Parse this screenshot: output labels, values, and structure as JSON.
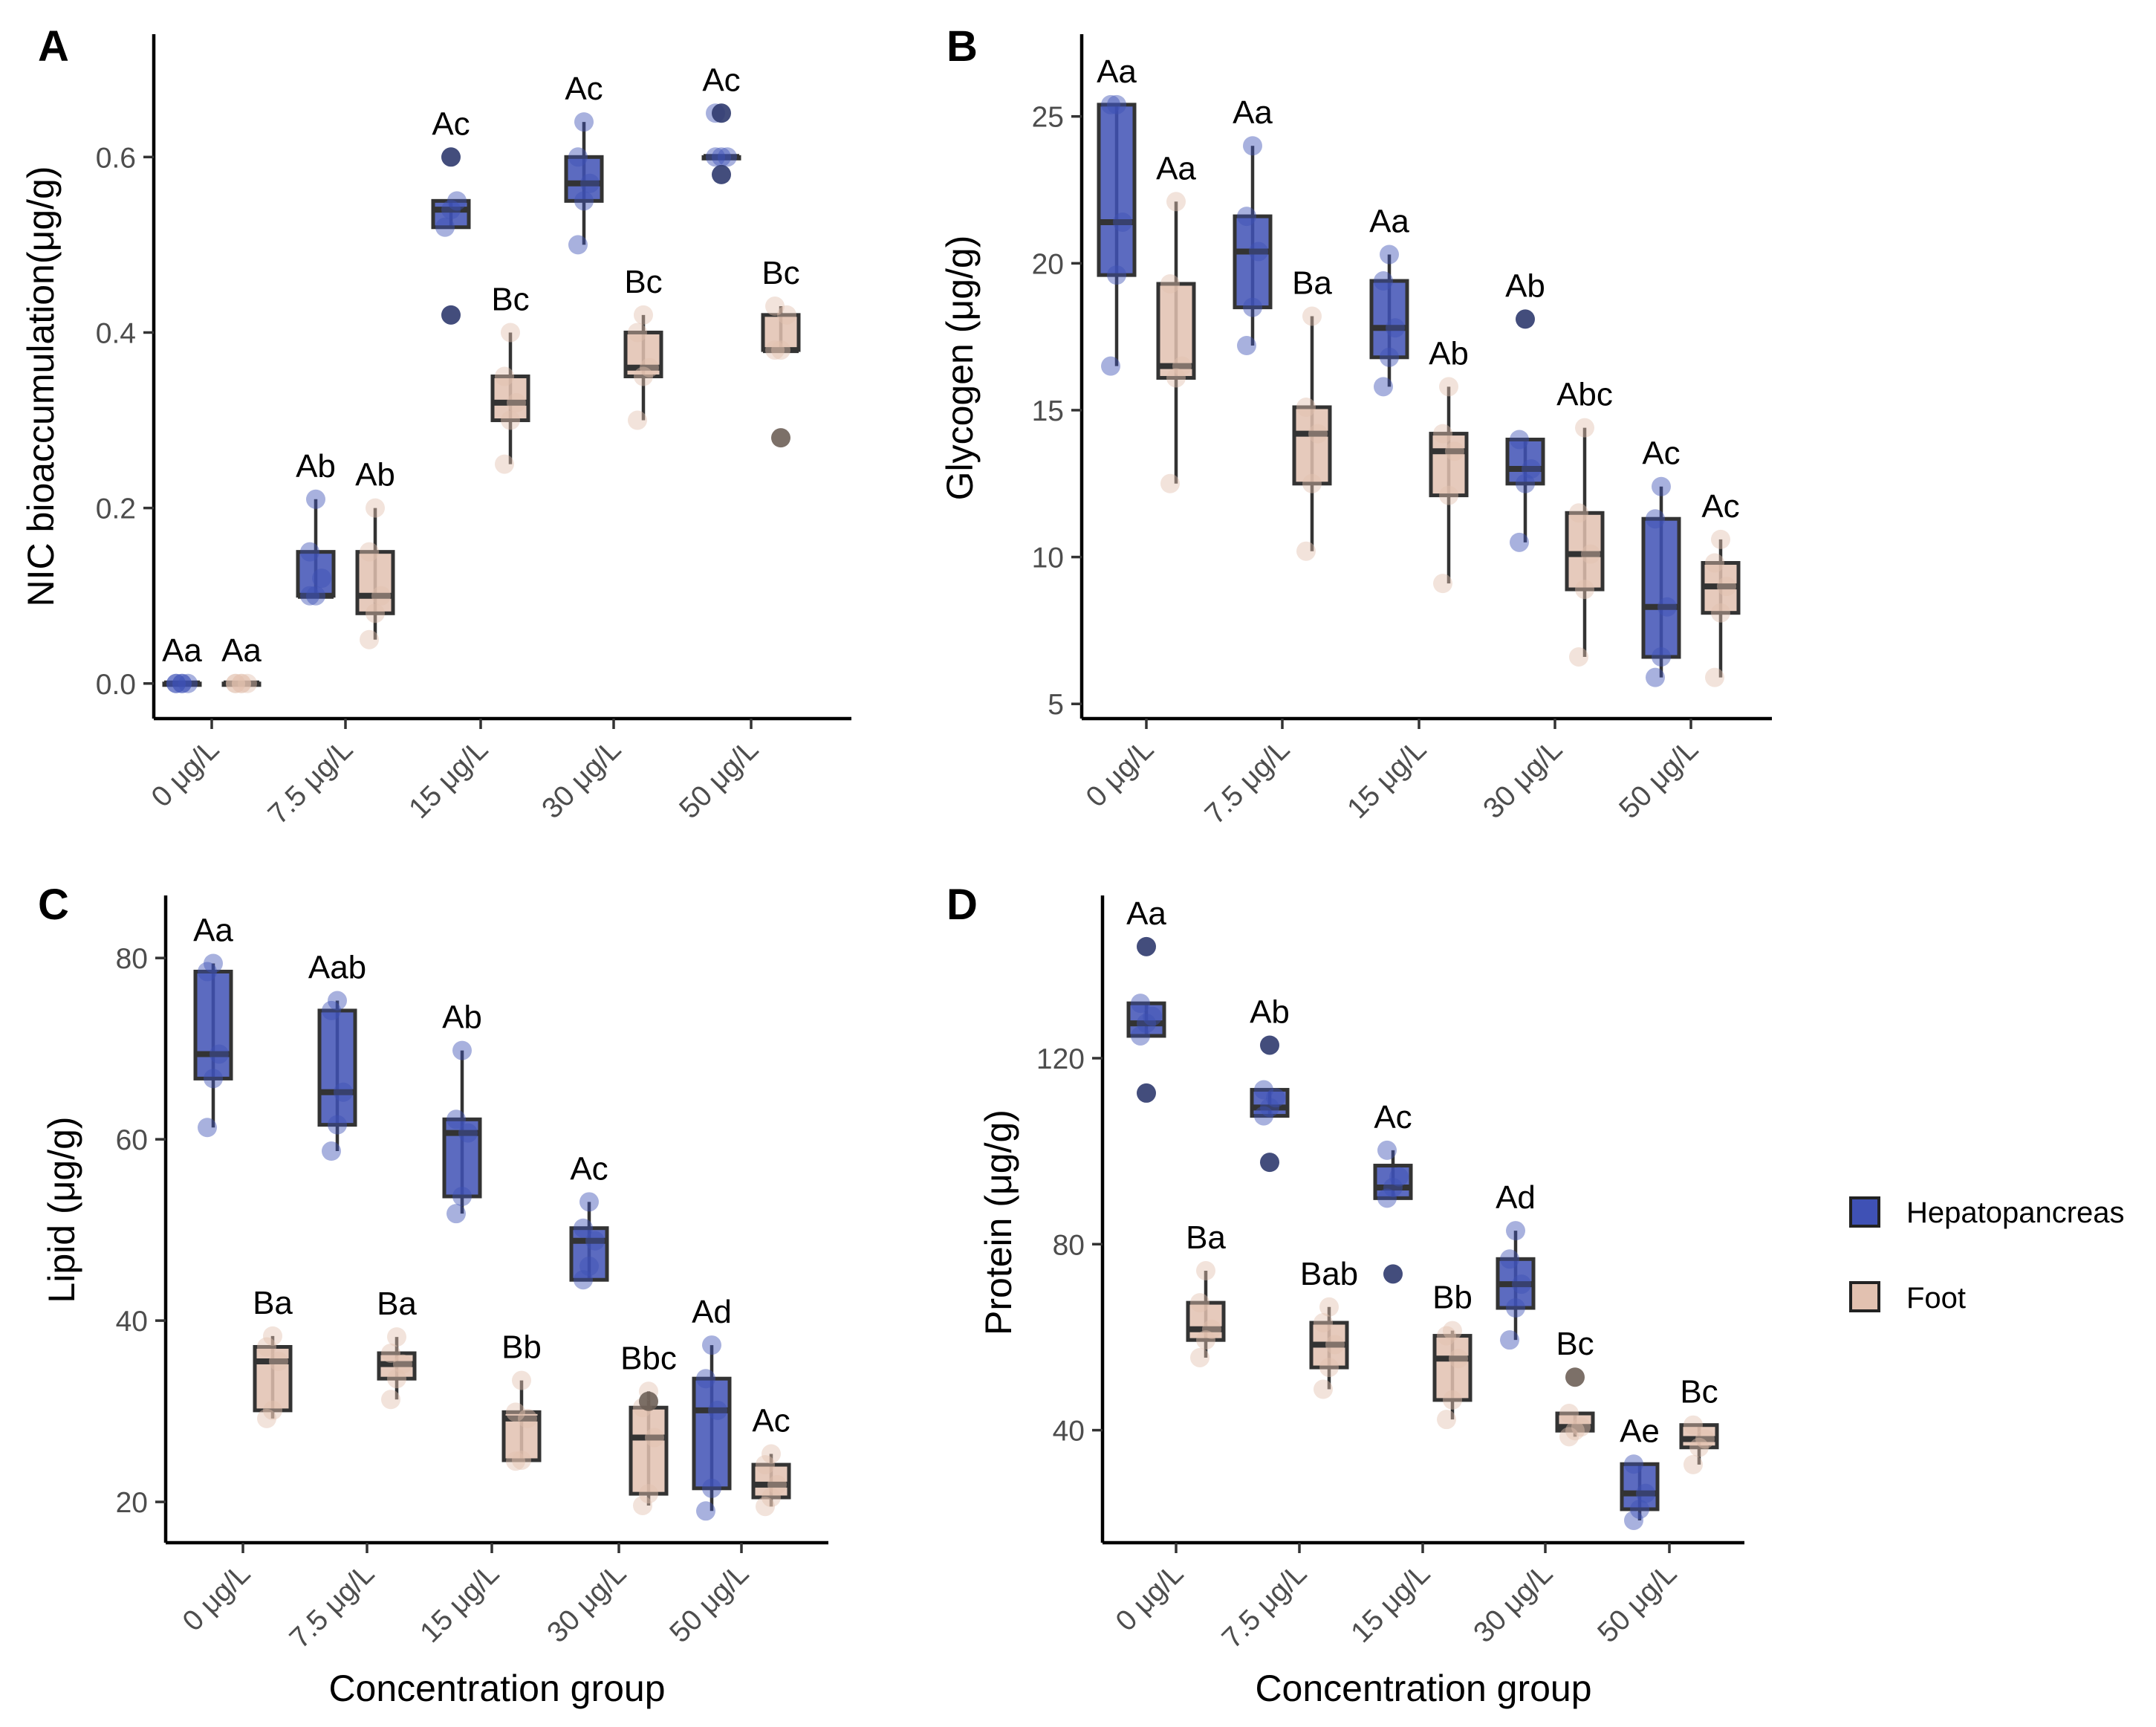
{
  "colors": {
    "hepatopancreas": "#3f51b5",
    "foot": "#e2c1b0",
    "outlier_hepatopancreas": "#2f3a6e",
    "outlier_foot": "#6e6058"
  },
  "legend": {
    "items": [
      {
        "label": "Hepatopancreas",
        "color": "#3f51b5"
      },
      {
        "label": "Foot",
        "color": "#e2c1b0"
      }
    ]
  },
  "chart_data": [
    {
      "panel": "A",
      "type": "box",
      "xlabel": "",
      "ylabel": "NIC bioaccumulation(μg/g)",
      "ylim": [
        -0.04,
        0.74
      ],
      "yticks": [
        0.0,
        0.2,
        0.4,
        0.6
      ],
      "ytick_labels": [
        "0.0",
        "0.2",
        "0.4",
        "0.6"
      ],
      "categories": [
        "0 μg/L",
        "7.5 μg/L",
        "15 μg/L",
        "30 μg/L",
        "50 μg/L"
      ],
      "series": [
        {
          "name": "Hepatopancreas",
          "boxes": [
            {
              "q1": 0.0,
              "median": 0.0,
              "q3": 0.0,
              "whislo": 0.0,
              "whishi": 0.0,
              "points": [
                0.0,
                0.0,
                0.0,
                0.0,
                0.0
              ],
              "outliers": [],
              "label": "Aa"
            },
            {
              "q1": 0.1,
              "median": 0.1,
              "q3": 0.15,
              "whislo": 0.1,
              "whishi": 0.21,
              "points": [
                0.1,
                0.1,
                0.12,
                0.15,
                0.21
              ],
              "outliers": [],
              "label": "Ab"
            },
            {
              "q1": 0.52,
              "median": 0.54,
              "q3": 0.55,
              "whislo": 0.52,
              "whishi": 0.55,
              "points": [
                0.52,
                0.54,
                0.55
              ],
              "outliers": [
                0.6,
                0.42
              ],
              "label": "Ac"
            },
            {
              "q1": 0.55,
              "median": 0.57,
              "q3": 0.6,
              "whislo": 0.5,
              "whishi": 0.64,
              "points": [
                0.5,
                0.55,
                0.57,
                0.6,
                0.64
              ],
              "outliers": [],
              "label": "Ac"
            },
            {
              "q1": 0.6,
              "median": 0.6,
              "q3": 0.6,
              "whislo": 0.6,
              "whishi": 0.6,
              "points": [
                0.6,
                0.6,
                0.6,
                0.65
              ],
              "outliers": [
                0.65,
                0.58
              ],
              "label": "Ac"
            }
          ]
        },
        {
          "name": "Foot",
          "boxes": [
            {
              "q1": 0.0,
              "median": 0.0,
              "q3": 0.0,
              "whislo": 0.0,
              "whishi": 0.0,
              "points": [
                0.0,
                0.0,
                0.0,
                0.0,
                0.0
              ],
              "outliers": [],
              "label": "Aa"
            },
            {
              "q1": 0.08,
              "median": 0.1,
              "q3": 0.15,
              "whislo": 0.05,
              "whishi": 0.2,
              "points": [
                0.05,
                0.08,
                0.1,
                0.15,
                0.2
              ],
              "outliers": [],
              "label": "Ab"
            },
            {
              "q1": 0.3,
              "median": 0.32,
              "q3": 0.35,
              "whislo": 0.25,
              "whishi": 0.4,
              "points": [
                0.25,
                0.3,
                0.32,
                0.35,
                0.4
              ],
              "outliers": [],
              "label": "Bc"
            },
            {
              "q1": 0.35,
              "median": 0.36,
              "q3": 0.4,
              "whislo": 0.3,
              "whishi": 0.42,
              "points": [
                0.3,
                0.35,
                0.36,
                0.4,
                0.42
              ],
              "outliers": [],
              "label": "Bc"
            },
            {
              "q1": 0.38,
              "median": 0.38,
              "q3": 0.42,
              "whislo": 0.38,
              "whishi": 0.43,
              "points": [
                0.38,
                0.38,
                0.42,
                0.43
              ],
              "outliers": [
                0.28
              ],
              "label": "Bc"
            }
          ]
        }
      ]
    },
    {
      "panel": "B",
      "type": "box",
      "xlabel": "",
      "ylabel": "Glycogen (μg/g)",
      "ylim": [
        4.5,
        27.8
      ],
      "yticks": [
        5,
        10,
        15,
        20,
        25
      ],
      "ytick_labels": [
        "5",
        "10",
        "15",
        "20",
        "25"
      ],
      "categories": [
        "0 μg/L",
        "7.5 μg/L",
        "15 μg/L",
        "30 μg/L",
        "50 μg/L"
      ],
      "series": [
        {
          "name": "Hepatopancreas",
          "boxes": [
            {
              "q1": 19.6,
              "median": 21.4,
              "q3": 25.4,
              "whislo": 16.5,
              "whishi": 25.4,
              "points": [
                16.5,
                19.6,
                21.4,
                25.4,
                25.4
              ],
              "outliers": [],
              "label": "Aa"
            },
            {
              "q1": 18.5,
              "median": 20.4,
              "q3": 21.6,
              "whislo": 17.2,
              "whishi": 24.0,
              "points": [
                17.2,
                18.5,
                20.4,
                21.6,
                24.0
              ],
              "outliers": [],
              "label": "Aa"
            },
            {
              "q1": 16.8,
              "median": 17.8,
              "q3": 19.4,
              "whislo": 15.8,
              "whishi": 20.3,
              "points": [
                15.8,
                16.8,
                17.8,
                19.4,
                20.3
              ],
              "outliers": [],
              "label": "Aa"
            },
            {
              "q1": 12.5,
              "median": 13.0,
              "q3": 14.0,
              "whislo": 10.5,
              "whishi": 14.0,
              "points": [
                10.5,
                12.5,
                13.0,
                14.0
              ],
              "outliers": [
                18.1
              ],
              "label": "Ab"
            },
            {
              "q1": 6.6,
              "median": 8.3,
              "q3": 11.3,
              "whislo": 5.9,
              "whishi": 12.4,
              "points": [
                5.9,
                6.6,
                8.3,
                11.3,
                12.4
              ],
              "outliers": [],
              "label": "Ac"
            }
          ]
        },
        {
          "name": "Foot",
          "boxes": [
            {
              "q1": 16.1,
              "median": 16.5,
              "q3": 19.3,
              "whislo": 12.5,
              "whishi": 22.1,
              "points": [
                12.5,
                16.1,
                16.5,
                19.3,
                22.1
              ],
              "outliers": [],
              "label": "Aa"
            },
            {
              "q1": 12.5,
              "median": 14.2,
              "q3": 15.1,
              "whislo": 10.2,
              "whishi": 18.2,
              "points": [
                10.2,
                12.5,
                14.2,
                15.1,
                18.2
              ],
              "outliers": [],
              "label": "Ba"
            },
            {
              "q1": 12.1,
              "median": 13.6,
              "q3": 14.2,
              "whislo": 9.1,
              "whishi": 15.8,
              "points": [
                9.1,
                12.1,
                13.6,
                14.2,
                15.8
              ],
              "outliers": [],
              "label": "Ab"
            },
            {
              "q1": 8.9,
              "median": 10.1,
              "q3": 11.5,
              "whislo": 6.6,
              "whishi": 14.4,
              "points": [
                6.6,
                8.9,
                10.1,
                11.5,
                14.4
              ],
              "outliers": [],
              "label": "Abc"
            },
            {
              "q1": 8.1,
              "median": 9.0,
              "q3": 9.8,
              "whislo": 5.9,
              "whishi": 10.6,
              "points": [
                5.9,
                8.1,
                9.0,
                9.8,
                10.6
              ],
              "outliers": [],
              "label": "Ac"
            }
          ]
        }
      ]
    },
    {
      "panel": "C",
      "type": "box",
      "xlabel": "Concentration group",
      "ylabel": "Lipid (μg/g)",
      "ylim": [
        15.5,
        86.9
      ],
      "yticks": [
        20,
        40,
        60,
        80
      ],
      "ytick_labels": [
        "20",
        "40",
        "60",
        "80"
      ],
      "categories": [
        "0 μg/L",
        "7.5 μg/L",
        "15 μg/L",
        "30 μg/L",
        "50 μg/L"
      ],
      "series": [
        {
          "name": "Hepatopancreas",
          "boxes": [
            {
              "q1": 66.7,
              "median": 69.4,
              "q3": 78.5,
              "whislo": 61.3,
              "whishi": 79.4,
              "points": [
                61.3,
                66.7,
                69.4,
                78.5,
                79.4
              ],
              "outliers": [],
              "label": "Aa"
            },
            {
              "q1": 61.6,
              "median": 65.2,
              "q3": 74.2,
              "whislo": 58.7,
              "whishi": 75.3,
              "points": [
                58.7,
                61.6,
                65.2,
                74.2,
                75.3
              ],
              "outliers": [],
              "label": "Aab"
            },
            {
              "q1": 53.7,
              "median": 60.7,
              "q3": 62.2,
              "whislo": 51.8,
              "whishi": 69.8,
              "points": [
                51.8,
                53.7,
                60.7,
                62.2,
                69.8
              ],
              "outliers": [],
              "label": "Ab"
            },
            {
              "q1": 44.5,
              "median": 48.8,
              "q3": 50.2,
              "whislo": 44.5,
              "whishi": 53.1,
              "points": [
                44.5,
                46.0,
                48.8,
                50.2,
                53.1
              ],
              "outliers": [],
              "label": "Ac"
            },
            {
              "q1": 21.5,
              "median": 30.1,
              "q3": 33.6,
              "whislo": 19.0,
              "whishi": 37.3,
              "points": [
                19.0,
                21.5,
                30.1,
                33.6,
                37.3
              ],
              "outliers": [],
              "label": "Ad"
            }
          ]
        },
        {
          "name": "Foot",
          "boxes": [
            {
              "q1": 30.1,
              "median": 35.5,
              "q3": 37.1,
              "whislo": 29.2,
              "whishi": 38.3,
              "points": [
                29.2,
                30.1,
                35.5,
                37.1,
                38.3
              ],
              "outliers": [],
              "label": "Ba"
            },
            {
              "q1": 33.6,
              "median": 35.2,
              "q3": 36.4,
              "whislo": 31.3,
              "whishi": 38.2,
              "points": [
                31.3,
                33.6,
                35.2,
                36.4,
                38.2
              ],
              "outliers": [],
              "label": "Ba"
            },
            {
              "q1": 24.6,
              "median": 29.2,
              "q3": 29.9,
              "whislo": 24.5,
              "whishi": 33.4,
              "points": [
                24.5,
                24.6,
                29.2,
                29.9,
                33.4
              ],
              "outliers": [],
              "label": "Bb"
            },
            {
              "q1": 20.9,
              "median": 27.1,
              "q3": 30.4,
              "whislo": 19.6,
              "whishi": 32.2,
              "points": [
                19.6,
                20.9,
                27.1,
                30.4,
                32.2
              ],
              "outliers": [
                31.1
              ],
              "label": "Bbc"
            },
            {
              "q1": 20.5,
              "median": 21.9,
              "q3": 24.1,
              "whislo": 19.5,
              "whishi": 25.3,
              "points": [
                19.5,
                20.5,
                21.9,
                24.1,
                25.3
              ],
              "outliers": [],
              "label": "Ac"
            }
          ]
        }
      ]
    },
    {
      "panel": "D",
      "type": "box",
      "xlabel": "Concentration group",
      "ylabel": "Protein (μg/g)",
      "ylim": [
        15.8,
        155.0
      ],
      "yticks": [
        40,
        80,
        120
      ],
      "ytick_labels": [
        "40",
        "80",
        "120"
      ],
      "categories": [
        "0 μg/L",
        "7.5 μg/L",
        "15 μg/L",
        "30 μg/L",
        "50 μg/L"
      ],
      "series": [
        {
          "name": "Hepatopancreas",
          "boxes": [
            {
              "q1": 124.8,
              "median": 127.5,
              "q3": 131.8,
              "whislo": 124.8,
              "whishi": 131.8,
              "points": [
                124.8,
                127.5,
                129.0,
                131.8
              ],
              "outliers": [
                144.0,
                112.5
              ],
              "label": "Aa"
            },
            {
              "q1": 107.6,
              "median": 109.4,
              "q3": 113.2,
              "whislo": 107.6,
              "whishi": 113.2,
              "points": [
                107.6,
                109.4,
                111.5,
                113.2
              ],
              "outliers": [
                122.8,
                97.6
              ],
              "label": "Ab"
            },
            {
              "q1": 89.9,
              "median": 92.2,
              "q3": 96.9,
              "whislo": 89.9,
              "whishi": 100.2,
              "points": [
                89.9,
                92.2,
                94.5,
                100.2
              ],
              "outliers": [
                73.6
              ],
              "label": "Ac"
            },
            {
              "q1": 66.3,
              "median": 71.4,
              "q3": 76.8,
              "whislo": 59.4,
              "whishi": 82.9,
              "points": [
                59.4,
                66.3,
                71.4,
                76.8,
                82.9
              ],
              "outliers": [],
              "label": "Ad"
            },
            {
              "q1": 23.0,
              "median": 26.4,
              "q3": 32.7,
              "whislo": 20.6,
              "whishi": 32.7,
              "points": [
                20.6,
                23.0,
                26.4,
                32.7
              ],
              "outliers": [],
              "label": "Ae"
            }
          ]
        },
        {
          "name": "Foot",
          "boxes": [
            {
              "q1": 59.4,
              "median": 61.7,
              "q3": 67.4,
              "whislo": 55.6,
              "whishi": 74.3,
              "points": [
                55.6,
                59.4,
                61.7,
                67.4,
                74.3
              ],
              "outliers": [],
              "label": "Ba"
            },
            {
              "q1": 53.5,
              "median": 58.4,
              "q3": 63.1,
              "whislo": 48.8,
              "whishi": 66.5,
              "points": [
                48.8,
                53.5,
                58.4,
                63.1,
                66.5
              ],
              "outliers": [],
              "label": "Bab"
            },
            {
              "q1": 46.5,
              "median": 55.4,
              "q3": 60.3,
              "whislo": 42.3,
              "whishi": 61.4,
              "points": [
                42.3,
                46.5,
                55.4,
                60.3,
                61.4
              ],
              "outliers": [],
              "label": "Bb"
            },
            {
              "q1": 39.9,
              "median": 40.7,
              "q3": 43.6,
              "whislo": 38.6,
              "whishi": 43.6,
              "points": [
                38.6,
                39.9,
                40.7,
                43.6
              ],
              "outliers": [
                51.4
              ],
              "label": "Bc"
            },
            {
              "q1": 36.3,
              "median": 38.1,
              "q3": 41.1,
              "whislo": 32.6,
              "whishi": 41.1,
              "points": [
                32.6,
                36.3,
                38.1,
                41.1
              ],
              "outliers": [],
              "label": "Bc"
            }
          ]
        }
      ]
    }
  ]
}
